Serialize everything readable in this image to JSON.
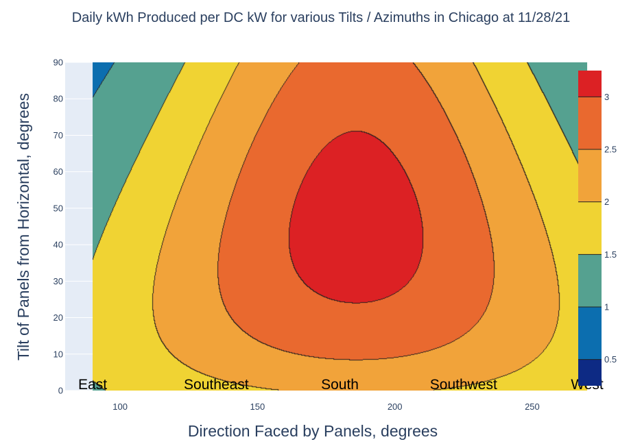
{
  "chart_data": {
    "type": "contour",
    "title": "Daily kWh Produced per DC kW for various Tilts / Azimuths in Chicago at 11/28/21",
    "xlabel": "Direction Faced by Panels, degrees",
    "ylabel": "Tilt of Panels from Horizontal, degrees",
    "xlim": [
      80,
      260
    ],
    "ylim": [
      0,
      90
    ],
    "data_x_range": [
      90,
      270
    ],
    "x_ticks": [
      100,
      150,
      200,
      250
    ],
    "y_ticks": [
      0,
      10,
      20,
      30,
      40,
      50,
      60,
      70,
      80,
      90
    ],
    "peak": {
      "azimuth": 186,
      "tilt": 66,
      "value": 3.2
    },
    "contour_levels": [
      0.5,
      1,
      1.5,
      2,
      2.5,
      3
    ],
    "colorbar": {
      "range": [
        0.25,
        3.25
      ],
      "ticks": [
        "0.5",
        "1",
        "1.5",
        "2",
        "2.5",
        "3"
      ],
      "colors": [
        "#0d2a84",
        "#0c6eaf",
        "#55a190",
        "#f0d333",
        "#f1a33a",
        "#e9692f",
        "#dc2124"
      ]
    },
    "direction_labels": [
      {
        "text": "East",
        "x": 90
      },
      {
        "text": "Southeast",
        "x": 135
      },
      {
        "text": "South",
        "x": 180
      },
      {
        "text": "Southwest",
        "x": 225
      },
      {
        "text": "West",
        "x": 270
      }
    ],
    "grid": true,
    "plot_background": "#e5ecf6"
  }
}
